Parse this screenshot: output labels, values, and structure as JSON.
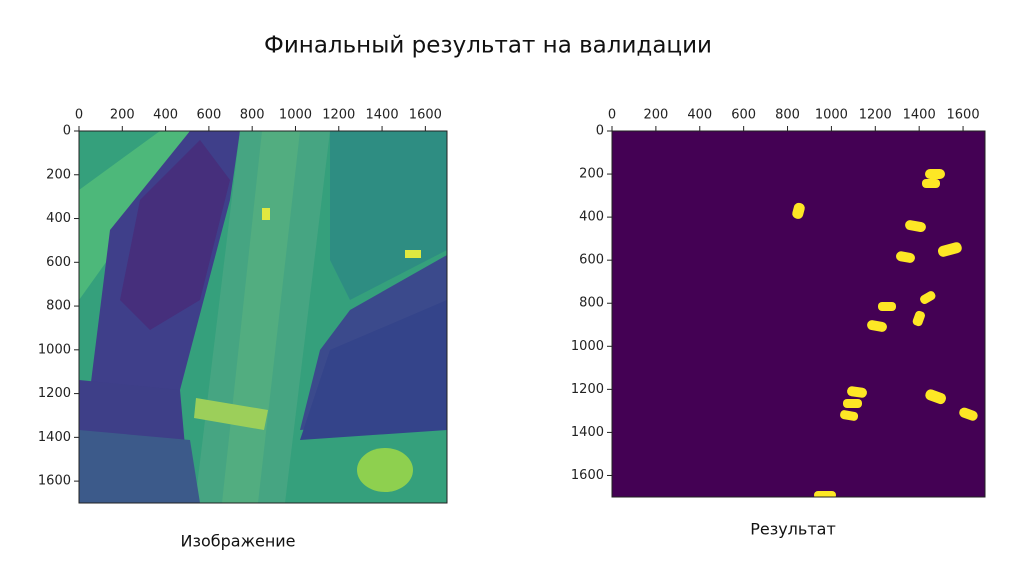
{
  "title": "Финальный результат на валидации",
  "chart_data": [
    {
      "type": "image",
      "caption": "Изображение",
      "xlim": [
        0,
        1700
      ],
      "ylim": [
        1700,
        0
      ],
      "xticks": [
        0,
        200,
        400,
        600,
        800,
        1000,
        1200,
        1400,
        1600
      ],
      "yticks": [
        0,
        200,
        400,
        600,
        800,
        1000,
        1200,
        1400,
        1600
      ]
    },
    {
      "type": "mask",
      "caption": "Результат",
      "xlim": [
        0,
        1700
      ],
      "ylim": [
        1700,
        0
      ],
      "xticks": [
        0,
        200,
        400,
        600,
        800,
        1000,
        1200,
        1400,
        1600
      ],
      "yticks": [
        0,
        200,
        400,
        600,
        800,
        1000,
        1200,
        1400,
        1600
      ]
    }
  ]
}
